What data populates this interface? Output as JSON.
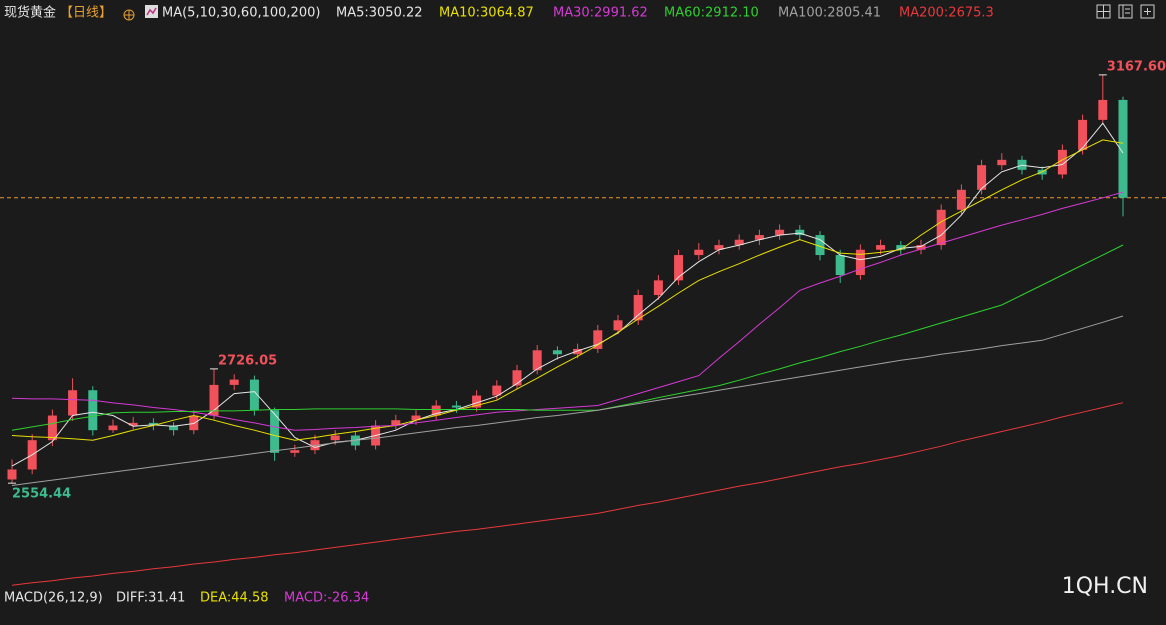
{
  "chart_data": {
    "type": "candlestick",
    "title": "现货黄金",
    "period": "【日线】",
    "ma_label": "MA(5,10,30,60,100,200)",
    "up_color": "#f0515a",
    "down_color": "#3dbb8e",
    "last_price_color": "#e89a2c",
    "ylim": [
      2394,
      3250
    ],
    "open": [
      2560,
      2575,
      2619,
      2656,
      2694,
      2634,
      2641,
      2645,
      2641,
      2634,
      2656,
      2702,
      2710,
      2664,
      2600,
      2604,
      2619,
      2626,
      2611,
      2641,
      2649,
      2656,
      2671,
      2668,
      2686,
      2701,
      2724,
      2754,
      2748,
      2756,
      2784,
      2799,
      2837,
      2859,
      2897,
      2905,
      2912,
      2920,
      2927,
      2935,
      2927,
      2897,
      2867,
      2905,
      2912,
      2905,
      2912,
      2965,
      2995,
      3032,
      3040,
      3025,
      3018,
      3055,
      3100,
      3130
    ],
    "high": [
      2590,
      2628,
      2665,
      2712,
      2700,
      2650,
      2654,
      2652,
      2646,
      2664,
      2726.05,
      2718,
      2716,
      2668,
      2612,
      2627,
      2634,
      2632,
      2649,
      2657,
      2664,
      2679,
      2678,
      2694,
      2709,
      2732,
      2762,
      2760,
      2764,
      2792,
      2807,
      2845,
      2867,
      2905,
      2915,
      2920,
      2928,
      2935,
      2943,
      2942,
      2933,
      2905,
      2913,
      2920,
      2918,
      2920,
      2973,
      3003,
      3040,
      3050,
      3046,
      3030,
      3063,
      3108,
      3167.6,
      3135
    ],
    "low": [
      2554.44,
      2568,
      2610,
      2648,
      2626,
      2630,
      2635,
      2634,
      2626,
      2628,
      2650,
      2694,
      2656,
      2588,
      2594,
      2598,
      2612,
      2604,
      2605,
      2635,
      2642,
      2650,
      2660,
      2662,
      2680,
      2695,
      2718,
      2740,
      2742,
      2750,
      2778,
      2792,
      2830,
      2852,
      2890,
      2898,
      2905,
      2912,
      2920,
      2920,
      2889,
      2855,
      2860,
      2898,
      2898,
      2898,
      2905,
      2958,
      2988,
      3025,
      3018,
      3010,
      3012,
      3048,
      3095,
      2955
    ],
    "close": [
      2575,
      2619,
      2656,
      2694,
      2634,
      2641,
      2645,
      2641,
      2634,
      2656,
      2702,
      2710,
      2664,
      2600,
      2604,
      2619,
      2626,
      2611,
      2641,
      2649,
      2656,
      2671,
      2668,
      2686,
      2701,
      2724,
      2754,
      2748,
      2756,
      2784,
      2799,
      2837,
      2859,
      2897,
      2905,
      2912,
      2920,
      2927,
      2935,
      2927,
      2897,
      2867,
      2905,
      2912,
      2905,
      2912,
      2965,
      2995,
      3032,
      3040,
      3025,
      3018,
      3055,
      3100,
      3130,
      2983
    ],
    "high_labels": [
      null,
      null,
      null,
      null,
      null,
      null,
      null,
      null,
      null,
      null,
      "2726.05",
      null,
      null,
      null,
      null,
      null,
      null,
      null,
      null,
      null,
      null,
      null,
      null,
      null,
      null,
      null,
      null,
      null,
      null,
      null,
      null,
      null,
      null,
      null,
      null,
      null,
      null,
      null,
      null,
      null,
      null,
      null,
      null,
      null,
      null,
      null,
      null,
      null,
      null,
      null,
      null,
      null,
      null,
      null,
      "3167.60",
      null
    ],
    "low_labels": [
      "2554.44",
      null,
      null,
      null,
      null,
      null,
      null,
      null,
      null,
      null,
      null,
      null,
      null,
      null,
      null,
      null,
      null,
      null,
      null,
      null,
      null,
      null,
      null,
      null,
      null,
      null,
      null,
      null,
      null,
      null,
      null,
      null,
      null,
      null,
      null,
      null,
      null,
      null,
      null,
      null,
      null,
      null,
      null,
      null,
      null,
      null,
      null,
      null,
      null,
      null,
      null,
      null,
      null,
      null,
      null,
      null
    ],
    "series": [
      {
        "name": "MA5:3050.22",
        "color": "#e6e6e6",
        "values": [
          2580,
          2597,
          2617,
          2656,
          2661,
          2656,
          2640,
          2642,
          2640,
          2644,
          2664,
          2689,
          2692,
          2658,
          2623,
          2608,
          2616,
          2619,
          2626,
          2634,
          2649,
          2659,
          2665,
          2675,
          2685,
          2704,
          2726,
          2742,
          2753,
          2763,
          2780,
          2807,
          2832,
          2864,
          2887,
          2905,
          2912,
          2920,
          2927,
          2930,
          2920,
          2897,
          2890,
          2895,
          2907,
          2910,
          2927,
          2957,
          2997,
          3022,
          3032,
          3028,
          3033,
          3058,
          3095,
          3050.22
        ]
      },
      {
        "name": "MA10:3064.87",
        "color": "#e8e000",
        "values": [
          2626,
          2624,
          2623,
          2621,
          2619,
          2626,
          2634,
          2641,
          2649,
          2656,
          2649,
          2641,
          2634,
          2626,
          2619,
          2623,
          2628,
          2632,
          2637,
          2641,
          2649,
          2656,
          2664,
          2671,
          2679,
          2696,
          2712,
          2729,
          2745,
          2762,
          2781,
          2801,
          2820,
          2840,
          2859,
          2872,
          2884,
          2897,
          2909,
          2920,
          2910,
          2900,
          2898,
          2901,
          2905,
          2927,
          2947,
          2963,
          2979,
          2995,
          3010,
          3022,
          3040,
          3055,
          3070,
          3064.87
        ]
      },
      {
        "name": "MA30:2991.62",
        "color": "#d63ad6",
        "values": [
          2682,
          2681,
          2681,
          2680,
          2679,
          2675,
          2672,
          2668,
          2665,
          2661,
          2656,
          2650,
          2645,
          2639,
          2634,
          2635,
          2637,
          2638,
          2640,
          2641,
          2645,
          2649,
          2653,
          2657,
          2661,
          2663,
          2665,
          2667,
          2669,
          2671,
          2680,
          2689,
          2698,
          2707,
          2716,
          2742,
          2767,
          2793,
          2818,
          2844,
          2855,
          2865,
          2876,
          2886,
          2897,
          2906,
          2915,
          2924,
          2933,
          2942,
          2950,
          2958,
          2967,
          2975,
          2983,
          2991.62
        ]
      },
      {
        "name": "MA60:2912.10",
        "color": "#2fd02f",
        "values": [
          2634,
          2639,
          2644,
          2650,
          2655,
          2660,
          2661,
          2661,
          2662,
          2662,
          2663,
          2663,
          2664,
          2665,
          2665,
          2666,
          2666,
          2666,
          2666,
          2666,
          2665,
          2665,
          2665,
          2665,
          2665,
          2665,
          2664,
          2664,
          2664,
          2664,
          2670,
          2676,
          2683,
          2689,
          2695,
          2701,
          2709,
          2718,
          2726,
          2735,
          2743,
          2752,
          2760,
          2769,
          2777,
          2786,
          2795,
          2804,
          2813,
          2822,
          2837,
          2852,
          2867,
          2882,
          2897,
          2912.1
        ]
      },
      {
        "name": "MA100:2805.41",
        "color": "#a0a0a0",
        "values": [
          2551,
          2555,
          2559,
          2563,
          2567,
          2571,
          2575,
          2579,
          2583,
          2587,
          2591,
          2595,
          2599,
          2603,
          2607,
          2611,
          2615,
          2619,
          2622,
          2626,
          2630,
          2634,
          2638,
          2641,
          2645,
          2649,
          2653,
          2656,
          2660,
          2664,
          2669,
          2674,
          2679,
          2684,
          2689,
          2694,
          2699,
          2704,
          2709,
          2714,
          2719,
          2724,
          2729,
          2734,
          2739,
          2743,
          2748,
          2752,
          2756,
          2761,
          2765,
          2769,
          2778,
          2787,
          2796,
          2805.41
        ]
      },
      {
        "name": "MA200:2675.3",
        "color": "#e8383d",
        "values": [
          2401,
          2405,
          2408,
          2412,
          2415,
          2419,
          2422,
          2426,
          2429,
          2433,
          2436,
          2440,
          2443,
          2447,
          2450,
          2454,
          2458,
          2462,
          2466,
          2470,
          2474,
          2478,
          2482,
          2485,
          2489,
          2493,
          2497,
          2501,
          2505,
          2509,
          2515,
          2521,
          2526,
          2532,
          2538,
          2544,
          2550,
          2555,
          2561,
          2567,
          2573,
          2579,
          2584,
          2590,
          2596,
          2603,
          2610,
          2618,
          2625,
          2632,
          2639,
          2646,
          2654,
          2661,
          2668,
          2675.3
        ]
      }
    ],
    "indicator": {
      "label": "MACD(26,12,9)",
      "items": [
        {
          "name": "DIFF:31.41",
          "color": "#e6e6e6"
        },
        {
          "name": "DEA:44.58",
          "color": "#e8e000"
        },
        {
          "name": "MACD:-26.34",
          "color": "#d63ad6"
        }
      ]
    },
    "watermark": "1QH.CN"
  }
}
